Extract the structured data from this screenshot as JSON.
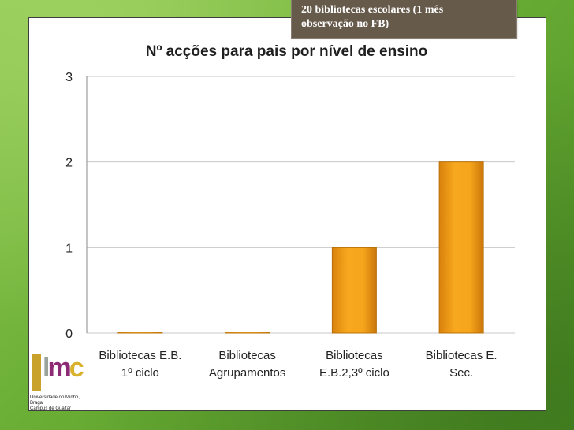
{
  "callout": {
    "line1": "20 bibliotecas escolares (1 mês",
    "line2": "observação no FB)"
  },
  "colors": {
    "bar_fill": "#f2a01c",
    "bar_stroke": "#b7700a",
    "grid": "#c8c8c8",
    "axis_text": "#222222",
    "callout_bg": "#665a4b"
  },
  "logo": {
    "letters": [
      "l",
      "m",
      "c"
    ],
    "caption_line1": "Universidade do Minho, Braga",
    "caption_line2": "Campus de Gualtar"
  },
  "chart_data": {
    "type": "bar",
    "title": "Nº acções para pais por nível de ensino",
    "categories": [
      [
        "Bibliotecas E.B.",
        "1º ciclo"
      ],
      [
        "Bibliotecas",
        "Agrupamentos"
      ],
      [
        "Bibliotecas",
        "E.B.2,3º ciclo"
      ],
      [
        "Bibliotecas E.",
        "Sec."
      ]
    ],
    "values": [
      0,
      0,
      1,
      2
    ],
    "ylim": [
      0,
      3
    ],
    "yticks": [
      0,
      1,
      2,
      3
    ],
    "grid": true,
    "legend": false
  }
}
